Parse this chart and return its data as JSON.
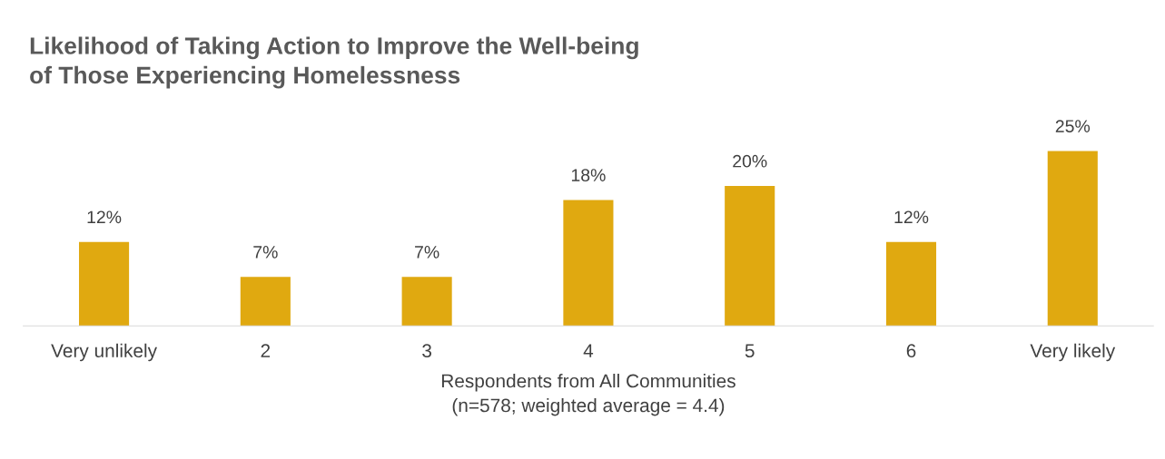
{
  "chart_data": {
    "type": "bar",
    "title": "Likelihood of Taking Action to Improve the Well-being\nof Those Experiencing Homelessness",
    "xlabel": "Respondents from All Communities\n(n=578; weighted average = 4.4)",
    "categories": [
      "Very unlikely",
      "2",
      "3",
      "4",
      "5",
      "6",
      "Very likely"
    ],
    "values": [
      12,
      7,
      7,
      18,
      20,
      12,
      25
    ],
    "value_labels": [
      "12%",
      "7%",
      "7%",
      "18%",
      "20%",
      "12%",
      "25%"
    ],
    "color": "#e0a910",
    "grid": false,
    "legend": false
  }
}
